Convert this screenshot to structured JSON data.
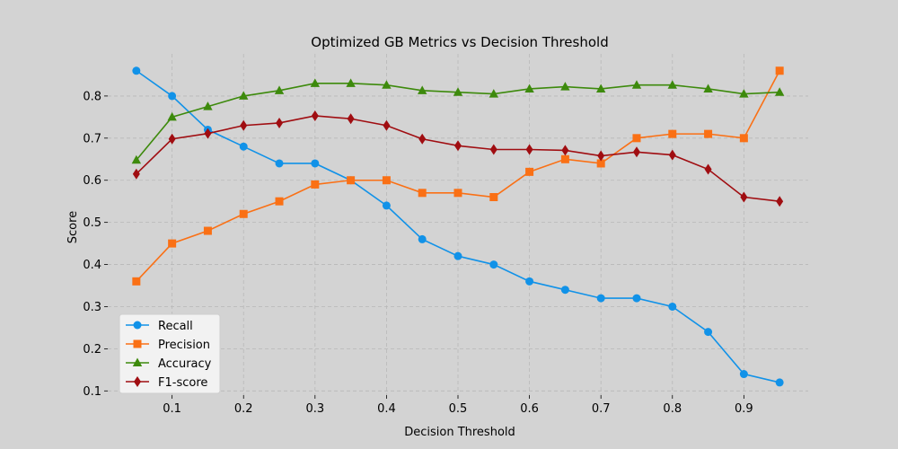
{
  "chart_data": {
    "type": "line",
    "title": "Optimized GB Metrics vs Decision Threshold",
    "xlabel": "Decision Threshold",
    "ylabel": "Score",
    "xlim": [
      0.01,
      0.99
    ],
    "ylim": [
      0.09,
      0.9
    ],
    "x_ticks": [
      0.1,
      0.2,
      0.3,
      0.4,
      0.5,
      0.6,
      0.7,
      0.8,
      0.9
    ],
    "y_ticks": [
      0.1,
      0.2,
      0.3,
      0.4,
      0.5,
      0.6,
      0.7,
      0.8
    ],
    "x_tick_labels": [
      "0.1",
      "0.2",
      "0.3",
      "0.4",
      "0.5",
      "0.6",
      "0.7",
      "0.8",
      "0.9"
    ],
    "y_tick_labels": [
      "0.1",
      "0.2",
      "0.3",
      "0.4",
      "0.5",
      "0.6",
      "0.7",
      "0.8"
    ],
    "grid": true,
    "legend_position": "lower-left",
    "x": [
      0.05,
      0.1,
      0.15,
      0.2,
      0.25,
      0.3,
      0.35,
      0.4,
      0.45,
      0.5,
      0.55,
      0.6,
      0.65,
      0.7,
      0.75,
      0.8,
      0.85,
      0.9,
      0.95
    ],
    "series": [
      {
        "name": "Recall",
        "color": "#1192e8",
        "marker": "circle",
        "values": [
          0.86,
          0.8,
          0.72,
          0.68,
          0.64,
          0.64,
          0.6,
          0.54,
          0.46,
          0.42,
          0.4,
          0.36,
          0.34,
          0.32,
          0.32,
          0.3,
          0.24,
          0.14,
          0.12
        ]
      },
      {
        "name": "Precision",
        "color": "#fa7015",
        "marker": "square",
        "values": [
          0.36,
          0.45,
          0.48,
          0.52,
          0.55,
          0.59,
          0.6,
          0.6,
          0.57,
          0.57,
          0.56,
          0.62,
          0.65,
          0.64,
          0.7,
          0.71,
          0.71,
          0.7,
          0.86
        ]
      },
      {
        "name": "Accuracy",
        "color": "#3d8a0c",
        "marker": "triangle",
        "values": [
          0.648,
          0.75,
          0.775,
          0.8,
          0.813,
          0.83,
          0.83,
          0.826,
          0.813,
          0.809,
          0.805,
          0.817,
          0.822,
          0.817,
          0.826,
          0.826,
          0.817,
          0.805,
          0.809
        ]
      },
      {
        "name": "F1-score",
        "color": "#a00d11",
        "marker": "diamond",
        "values": [
          0.615,
          0.698,
          0.711,
          0.73,
          0.736,
          0.753,
          0.746,
          0.73,
          0.698,
          0.682,
          0.673,
          0.673,
          0.671,
          0.658,
          0.667,
          0.66,
          0.626,
          0.56,
          0.55
        ]
      }
    ]
  }
}
